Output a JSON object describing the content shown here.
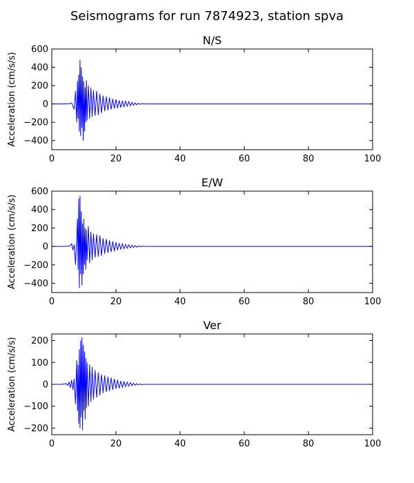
{
  "figure": {
    "title": "Seismograms for run 7874923, station spva"
  },
  "chart_data": [
    {
      "type": "line",
      "title": "N/S",
      "xlabel": "",
      "ylabel": "Acceleration (cm/s/s)",
      "xlim": [
        0,
        100
      ],
      "ylim": [
        -500,
        600
      ],
      "xticks": [
        0,
        20,
        40,
        60,
        80,
        100
      ],
      "yticks": [
        -400,
        -200,
        0,
        200,
        400,
        600
      ],
      "grid": false,
      "color": "#0000ff",
      "series": [
        {
          "x": [
            0,
            3,
            5,
            5.8,
            6.2,
            6.6,
            7.0,
            7.4,
            7.8,
            8.0,
            8.2,
            8.4,
            8.6,
            8.8,
            9.0,
            9.2,
            9.4,
            9.6,
            9.8,
            10.0,
            10.2,
            10.4,
            10.6,
            10.8,
            11.0,
            11.4,
            11.8,
            12.2,
            12.6,
            13.0,
            13.5,
            14.0,
            14.5,
            15.0,
            15.5,
            16.0,
            16.5,
            17.0,
            17.5,
            18.0,
            18.5,
            19.0,
            19.5,
            20.0,
            20.5,
            21.0,
            21.5,
            22.0,
            22.5,
            23.0,
            23.5,
            24.0,
            24.5,
            25.0,
            25.5,
            26.0,
            26.5,
            27.0,
            27.5,
            28.0,
            29,
            30,
            40,
            60,
            80,
            100
          ],
          "y": [
            0,
            0,
            2,
            5,
            10,
            -20,
            -60,
            140,
            -200,
            250,
            -160,
            320,
            -300,
            480,
            -350,
            400,
            -260,
            300,
            -400,
            250,
            -300,
            180,
            -200,
            260,
            -180,
            200,
            -160,
            180,
            -140,
            150,
            -130,
            140,
            -120,
            110,
            -100,
            90,
            -80,
            80,
            -70,
            70,
            -60,
            55,
            -50,
            50,
            -45,
            40,
            -40,
            35,
            -30,
            30,
            -25,
            25,
            -20,
            18,
            -15,
            12,
            -10,
            8,
            -5,
            4,
            1,
            0,
            0,
            0,
            0,
            0
          ]
        }
      ]
    },
    {
      "type": "line",
      "title": "E/W",
      "xlabel": "",
      "ylabel": "Acceleration (cm/s/s)",
      "xlim": [
        0,
        100
      ],
      "ylim": [
        -500,
        600
      ],
      "xticks": [
        0,
        20,
        40,
        60,
        80,
        100
      ],
      "yticks": [
        -400,
        -200,
        0,
        200,
        400,
        600
      ],
      "grid": false,
      "color": "#0000ff",
      "series": [
        {
          "x": [
            0,
            3,
            5,
            5.8,
            6.2,
            6.6,
            7.0,
            7.4,
            7.8,
            8.0,
            8.2,
            8.4,
            8.6,
            8.8,
            9.0,
            9.2,
            9.4,
            9.6,
            9.8,
            10.0,
            10.2,
            10.4,
            10.6,
            10.8,
            11.0,
            11.4,
            11.8,
            12.2,
            12.6,
            13.0,
            13.5,
            14.0,
            14.5,
            15.0,
            15.5,
            16.0,
            16.5,
            17.0,
            17.5,
            18.0,
            18.5,
            19.0,
            19.5,
            20.0,
            20.5,
            21.0,
            21.5,
            22.0,
            22.5,
            23.0,
            23.5,
            24.0,
            24.5,
            25.0,
            25.5,
            26.0,
            26.5,
            27.0,
            27.5,
            28.0,
            29,
            30,
            40,
            60,
            80,
            100
          ],
          "y": [
            0,
            0,
            2,
            10,
            30,
            -40,
            20,
            -200,
            120,
            300,
            -250,
            520,
            -450,
            550,
            -300,
            380,
            -420,
            250,
            -300,
            300,
            -200,
            200,
            -250,
            180,
            -150,
            220,
            -180,
            160,
            -150,
            140,
            -120,
            130,
            -110,
            120,
            -100,
            90,
            -80,
            80,
            -70,
            65,
            -60,
            55,
            -50,
            45,
            -40,
            35,
            -30,
            30,
            -25,
            22,
            -20,
            18,
            -15,
            14,
            -12,
            10,
            -8,
            6,
            -4,
            3,
            1,
            0,
            0,
            0,
            0,
            0
          ]
        }
      ]
    },
    {
      "type": "line",
      "title": "Ver",
      "xlabel": "",
      "ylabel": "Acceleration (cm/s/s)",
      "xlim": [
        0,
        100
      ],
      "ylim": [
        -230,
        230
      ],
      "xticks": [
        0,
        20,
        40,
        60,
        80,
        100
      ],
      "yticks": [
        -200,
        -100,
        0,
        100,
        200
      ],
      "grid": false,
      "color": "#0000ff",
      "series": [
        {
          "x": [
            0,
            3,
            4.5,
            5.0,
            5.4,
            5.8,
            6.2,
            6.6,
            7.0,
            7.4,
            7.8,
            8.0,
            8.2,
            8.4,
            8.6,
            8.8,
            9.0,
            9.2,
            9.4,
            9.6,
            9.8,
            10.0,
            10.2,
            10.4,
            10.6,
            10.8,
            11.0,
            11.4,
            11.8,
            12.2,
            12.6,
            13.0,
            13.5,
            14.0,
            14.5,
            15.0,
            15.5,
            16.0,
            16.5,
            17.0,
            17.5,
            18.0,
            18.5,
            19.0,
            19.5,
            20.0,
            20.5,
            21.0,
            21.5,
            22.0,
            22.5,
            23.0,
            23.5,
            24.0,
            24.5,
            25.0,
            25.5,
            26.0,
            26.5,
            27.0,
            27.5,
            28.0,
            29,
            30,
            40,
            60,
            80,
            100
          ],
          "y": [
            0,
            0,
            3,
            -5,
            10,
            -15,
            20,
            -25,
            25,
            -90,
            110,
            -120,
            90,
            -180,
            160,
            -200,
            200,
            -150,
            215,
            -210,
            180,
            -120,
            150,
            -160,
            120,
            -110,
            100,
            -100,
            90,
            -80,
            80,
            -70,
            65,
            -60,
            55,
            -50,
            45,
            -40,
            40,
            -35,
            35,
            -30,
            30,
            -25,
            25,
            -20,
            20,
            -18,
            15,
            -14,
            12,
            -10,
            10,
            -8,
            8,
            -6,
            5,
            -4,
            3,
            -2,
            2,
            -1,
            0,
            0,
            0,
            0,
            0,
            0
          ]
        }
      ]
    }
  ]
}
